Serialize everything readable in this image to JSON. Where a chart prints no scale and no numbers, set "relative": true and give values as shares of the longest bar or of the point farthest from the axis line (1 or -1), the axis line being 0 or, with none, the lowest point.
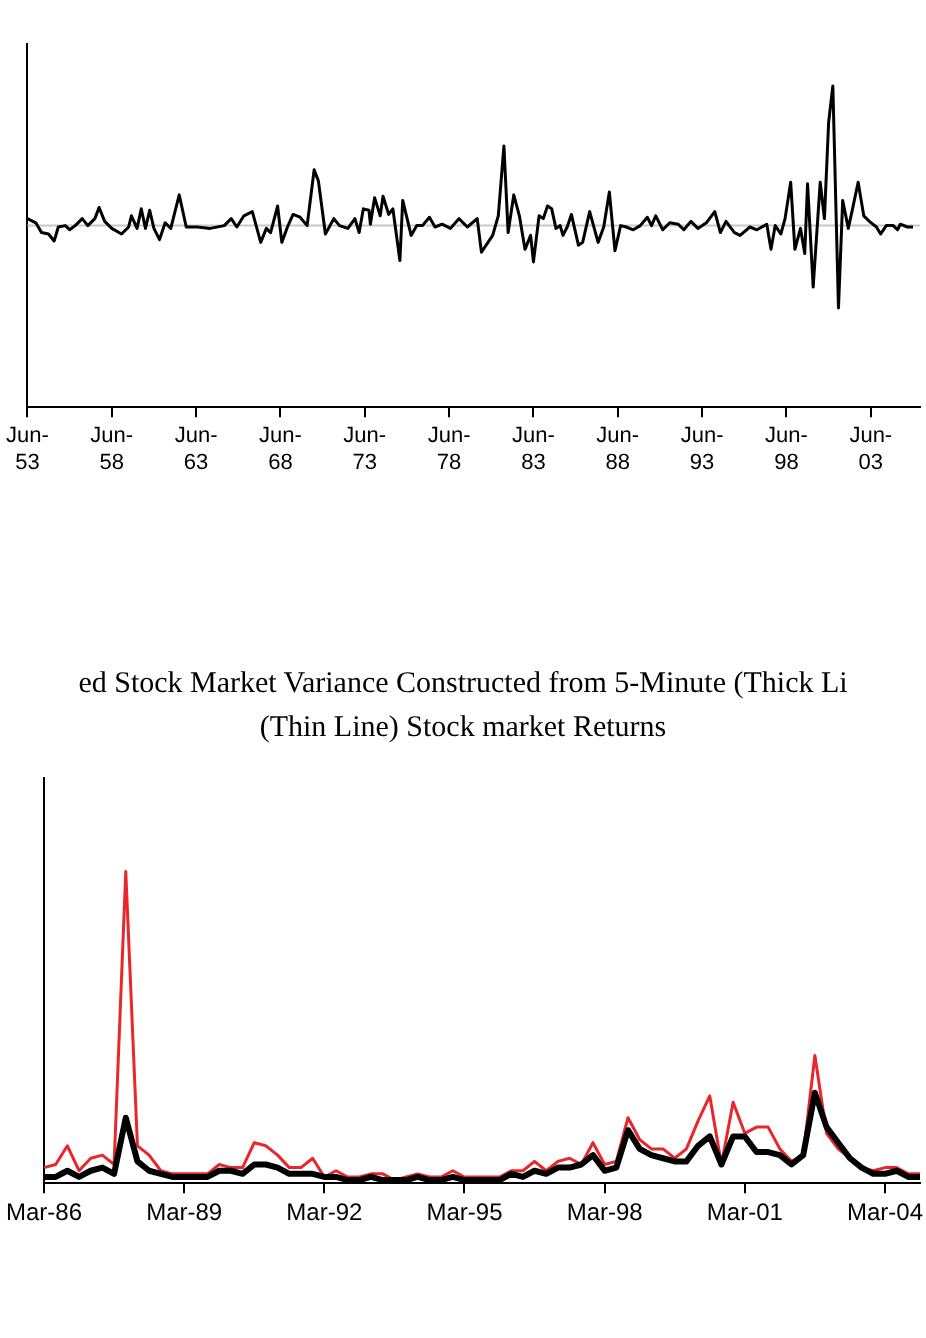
{
  "chart_data": [
    {
      "type": "line",
      "relative": true,
      "tick_labels": "x",
      "marker": "none",
      "color": "#000000",
      "ref_lines": [
        {
          "axis": "y",
          "value": 0,
          "color": "#c8c8c8"
        }
      ],
      "x": [
        "1953-06",
        "1953-12",
        "1954-04",
        "1954-09",
        "1955-01",
        "1955-04",
        "1955-09",
        "1955-12",
        "1956-04",
        "1956-09",
        "1957-01",
        "1957-06",
        "1957-09",
        "1958-01",
        "1958-06",
        "1959-01",
        "1959-06",
        "1959-08",
        "1959-12",
        "1960-03",
        "1960-06",
        "1960-09",
        "1960-12",
        "1961-04",
        "1961-08",
        "1961-12",
        "1962-06",
        "1962-11",
        "1963-07",
        "1964-04",
        "1965-02",
        "1965-07",
        "1965-11",
        "1966-04",
        "1966-10",
        "1967-04",
        "1967-08",
        "1967-11",
        "1968-04",
        "1968-07",
        "1968-11",
        "1969-03",
        "1969-08",
        "1970-01",
        "1970-06",
        "1970-09",
        "1971-02",
        "1971-08",
        "1971-12",
        "1972-06",
        "1972-11",
        "1973-02",
        "1973-05",
        "1973-09",
        "1973-10",
        "1974-01",
        "1974-05",
        "1974-07",
        "1974-11",
        "1975-02",
        "1975-07",
        "1975-09",
        "1976-03",
        "1976-07",
        "1976-11",
        "1977-04",
        "1977-08",
        "1978-01",
        "1978-07",
        "1979-01",
        "1979-07",
        "1980-02",
        "1980-05",
        "1981-01",
        "1981-05",
        "1981-09",
        "1981-12",
        "1982-04",
        "1982-08",
        "1982-12",
        "1983-04",
        "1983-06",
        "1983-10",
        "1984-01",
        "1984-04",
        "1984-07",
        "1984-10",
        "1985-01",
        "1985-03",
        "1985-06",
        "1985-09",
        "1986-02",
        "1986-05",
        "1986-10",
        "1987-04",
        "1987-08",
        "1987-12",
        "1988-04",
        "1988-08",
        "1988-12",
        "1989-05",
        "1989-10",
        "1990-03",
        "1990-06",
        "1990-09",
        "1991-02",
        "1991-07",
        "1992-01",
        "1992-05",
        "1992-10",
        "1993-03",
        "1993-09",
        "1994-03",
        "1994-07",
        "1994-11",
        "1995-05",
        "1995-09",
        "1996-04",
        "1996-09",
        "1997-04",
        "1997-07",
        "1997-10",
        "1998-02",
        "1998-05",
        "1998-09",
        "1998-12",
        "1999-04",
        "1999-07",
        "1999-09",
        "2000-01",
        "2000-06",
        "2000-09",
        "2000-12",
        "2001-03",
        "2001-07",
        "2001-10",
        "2002-02",
        "2002-05",
        "2002-09",
        "2003-01",
        "2003-05",
        "2003-10",
        "2004-01",
        "2004-05",
        "2004-10",
        "2005-01",
        "2005-03",
        "2005-08",
        "2005-12"
      ],
      "values": [
        0.05,
        0.02,
        -0.05,
        -0.06,
        -0.11,
        -0.01,
        0,
        -0.03,
        0,
        0.05,
        0,
        0.05,
        0.13,
        0.03,
        -0.02,
        -0.06,
        -0.01,
        0.07,
        -0.02,
        0.12,
        -0.02,
        0.11,
        -0.02,
        -0.1,
        0.02,
        -0.02,
        0.22,
        -0.01,
        -0.01,
        -0.02,
        0,
        0.05,
        -0.01,
        0.07,
        0.1,
        -0.12,
        -0.02,
        -0.05,
        0.14,
        -0.12,
        -0.01,
        0.08,
        0.06,
        0,
        0.4,
        0.32,
        -0.06,
        0.05,
        0,
        -0.02,
        0.05,
        -0.05,
        0.12,
        0.11,
        0.01,
        0.2,
        0.07,
        0.21,
        0.08,
        0.12,
        -0.25,
        0.18,
        -0.07,
        0,
        0,
        0.06,
        -0.01,
        0.01,
        -0.02,
        0.05,
        -0.01,
        0.05,
        -0.19,
        -0.07,
        0.07,
        0.57,
        -0.05,
        0.22,
        0.07,
        -0.17,
        -0.07,
        -0.26,
        0.07,
        0.05,
        0.14,
        0.12,
        -0.02,
        0,
        -0.07,
        -0.01,
        0.08,
        -0.14,
        -0.12,
        0.1,
        -0.12,
        -0.01,
        0.24,
        -0.18,
        0,
        -0.01,
        -0.03,
        0,
        0.06,
        0,
        0.07,
        -0.03,
        0.02,
        0.01,
        -0.03,
        0.03,
        -0.02,
        0.02,
        0.1,
        -0.05,
        0.03,
        -0.05,
        -0.07,
        -0.01,
        -0.03,
        0.01,
        -0.17,
        0,
        -0.06,
        0.05,
        0.31,
        -0.17,
        -0.02,
        -0.2,
        0.3,
        -0.44,
        0.31,
        0.05,
        0.74,
        1,
        -0.59,
        0.18,
        -0.02,
        0.12,
        0.31,
        0.07,
        0.03,
        -0.01,
        -0.06,
        0,
        0,
        -0.03,
        0.01,
        -0.01,
        -0.01
      ],
      "xlim": [
        "1953-06",
        "2006-05"
      ],
      "xticks": [
        {
          "value": "1953-06",
          "label": "Jun-53"
        },
        {
          "value": "1958-06",
          "label": "Jun-58"
        },
        {
          "value": "1963-06",
          "label": "Jun-63"
        },
        {
          "value": "1968-06",
          "label": "Jun-68"
        },
        {
          "value": "1973-06",
          "label": "Jun-73"
        },
        {
          "value": "1978-06",
          "label": "Jun-78"
        },
        {
          "value": "1983-06",
          "label": "Jun-83"
        },
        {
          "value": "1988-06",
          "label": "Jun-88"
        },
        {
          "value": "1993-06",
          "label": "Jun-93"
        },
        {
          "value": "1998-06",
          "label": "Jun-98"
        },
        {
          "value": "2003-06",
          "label": "Jun-03"
        }
      ]
    },
    {
      "type": "line",
      "relative": true,
      "tick_labels": "x",
      "marker": "none",
      "title": "ed Stock Market Variance Constructed from 5-Minute (Thick Li\n(Thin Line) Stock market Returns",
      "categories": [
        "Mar-86",
        null,
        null,
        null,
        null,
        null,
        null,
        null,
        null,
        null,
        null,
        null,
        "Mar-89",
        null,
        null,
        null,
        null,
        null,
        null,
        null,
        null,
        null,
        null,
        null,
        "Mar-92",
        null,
        null,
        null,
        null,
        null,
        null,
        null,
        null,
        null,
        null,
        null,
        "Mar-95",
        null,
        null,
        null,
        null,
        null,
        null,
        null,
        null,
        null,
        null,
        null,
        "Mar-98",
        null,
        null,
        null,
        null,
        null,
        null,
        null,
        null,
        null,
        null,
        null,
        "Mar-01",
        null,
        null,
        null,
        null,
        null,
        null,
        null,
        null,
        null,
        null,
        null,
        "Mar-04",
        null,
        null,
        null
      ],
      "series": [
        {
          "color": "#e8262b",
          "values": [
            0.05,
            0.06,
            0.12,
            0.04,
            0.08,
            0.09,
            0.06,
            1,
            0.12,
            0.09,
            0.04,
            0.03,
            0.03,
            0.03,
            0.03,
            0.06,
            0.05,
            0.05,
            0.13,
            0.12,
            0.09,
            0.05,
            0.05,
            0.08,
            0.02,
            0.04,
            0.02,
            0.02,
            0.03,
            0.03,
            0.01,
            0.02,
            0.03,
            0.02,
            0.02,
            0.04,
            0.02,
            0.02,
            0.02,
            0.02,
            0.04,
            0.04,
            0.07,
            0.04,
            0.07,
            0.08,
            0.06,
            0.13,
            0.06,
            0.07,
            0.21,
            0.14,
            0.11,
            0.11,
            0.08,
            0.11,
            0.2,
            0.28,
            0.06,
            0.26,
            0.16,
            0.18,
            0.18,
            0.11,
            0.07,
            0.09,
            0.41,
            0.16,
            0.11,
            0.08,
            0.05,
            0.04,
            0.05,
            0.05,
            0.03,
            0.03
          ]
        },
        {
          "color": "#000000",
          "values": [
            0.02,
            0.02,
            0.04,
            0.02,
            0.04,
            0.05,
            0.03,
            0.21,
            0.07,
            0.04,
            0.03,
            0.02,
            0.02,
            0.02,
            0.02,
            0.04,
            0.04,
            0.03,
            0.06,
            0.06,
            0.05,
            0.03,
            0.03,
            0.03,
            0.02,
            0.02,
            0.01,
            0.01,
            0.02,
            0.01,
            0.01,
            0.01,
            0.02,
            0.01,
            0.01,
            0.02,
            0.01,
            0.01,
            0.01,
            0.01,
            0.03,
            0.02,
            0.04,
            0.03,
            0.05,
            0.05,
            0.06,
            0.09,
            0.04,
            0.05,
            0.17,
            0.11,
            0.09,
            0.08,
            0.07,
            0.07,
            0.12,
            0.15,
            0.06,
            0.15,
            0.15,
            0.1,
            0.1,
            0.09,
            0.06,
            0.09,
            0.29,
            0.18,
            0.13,
            0.08,
            0.05,
            0.03,
            0.03,
            0.04,
            0.02,
            0.02
          ]
        }
      ]
    }
  ]
}
